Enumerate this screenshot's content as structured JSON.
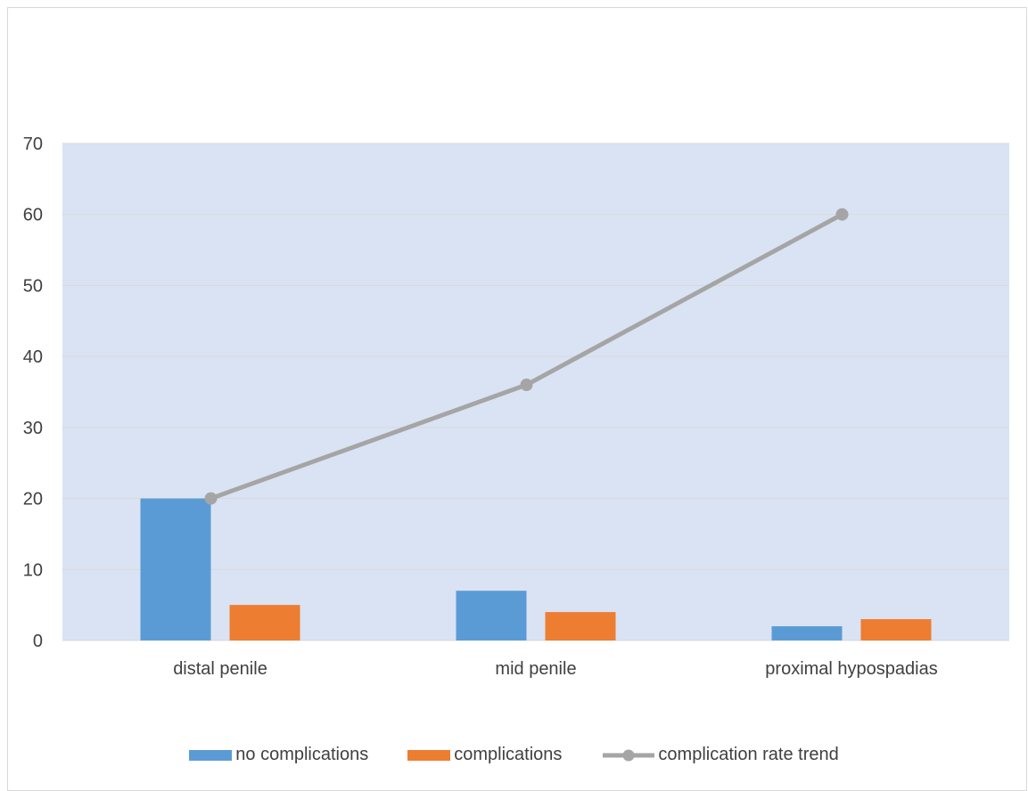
{
  "chart_data": {
    "type": "bar",
    "categories": [
      "distal penile",
      "mid penile",
      "proximal hypospadias"
    ],
    "series": [
      {
        "name": "no complications",
        "kind": "bar",
        "color": "#5b9bd5",
        "values": [
          20,
          7,
          2
        ]
      },
      {
        "name": "complications",
        "kind": "bar",
        "color": "#ed7d31",
        "values": [
          5,
          4,
          3
        ]
      },
      {
        "name": "complication rate trend",
        "kind": "line",
        "color": "#a5a5a5",
        "values": [
          20,
          36,
          60
        ]
      }
    ],
    "title": "",
    "xlabel": "",
    "ylabel": "",
    "ylim": [
      0,
      70
    ],
    "yticks": [
      "0",
      "10",
      "20",
      "30",
      "40",
      "50",
      "60",
      "70"
    ],
    "grid": true,
    "legend_position": "bottom",
    "plot_background": "#dae3f3",
    "grid_color": "#d9d9d9"
  }
}
